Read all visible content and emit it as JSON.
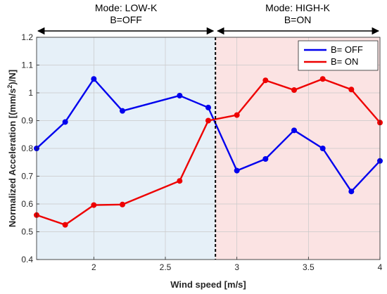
{
  "chart_data": {
    "type": "line",
    "title": "",
    "xlabel": "Wind speed [m/s]",
    "ylabel_prefix": "Normalized Acceleration [(mm/s",
    "ylabel_sup": "2",
    "ylabel_suffix": ")/N]",
    "xlim": [
      1.6,
      4.0
    ],
    "ylim": [
      0.4,
      1.2
    ],
    "xticks": [
      2,
      2.5,
      3,
      3.5,
      4
    ],
    "xtick_labels": [
      "2",
      "2.5",
      "3",
      "3.5",
      "4"
    ],
    "yticks": [
      0.4,
      0.5,
      0.6,
      0.7,
      0.8,
      0.9,
      1.0,
      1.1,
      1.2
    ],
    "ytick_labels": [
      "0.4",
      "0.5",
      "0.6",
      "0.7",
      "0.8",
      "0.9",
      "1",
      "1.1",
      "1.2"
    ],
    "grid": true,
    "legend_position": "top-right",
    "divider_x": 2.85,
    "regions": [
      {
        "x_range": [
          1.6,
          2.85
        ],
        "color": "#e6f0f8",
        "line1": "Mode: LOW-K",
        "line2": "B=OFF"
      },
      {
        "x_range": [
          2.85,
          4.0
        ],
        "color": "#fbe3e3",
        "line1": "Mode: HIGH-K",
        "line2": "B=ON"
      }
    ],
    "series": [
      {
        "name": "B= OFF",
        "color": "#0000ee",
        "x": [
          1.6,
          1.8,
          2.0,
          2.2,
          2.6,
          2.8,
          3.0,
          3.2,
          3.4,
          3.6,
          3.8,
          4.0
        ],
        "y": [
          0.8,
          0.895,
          1.05,
          0.935,
          0.99,
          0.947,
          0.72,
          0.762,
          0.865,
          0.8,
          0.645,
          0.755
        ]
      },
      {
        "name": "B= ON",
        "color": "#ee0000",
        "x": [
          1.6,
          1.8,
          2.0,
          2.2,
          2.6,
          2.8,
          3.0,
          3.2,
          3.4,
          3.6,
          3.8,
          4.0
        ],
        "y": [
          0.56,
          0.525,
          0.596,
          0.598,
          0.683,
          0.9,
          0.92,
          1.045,
          1.01,
          1.05,
          1.012,
          0.893
        ]
      }
    ]
  }
}
